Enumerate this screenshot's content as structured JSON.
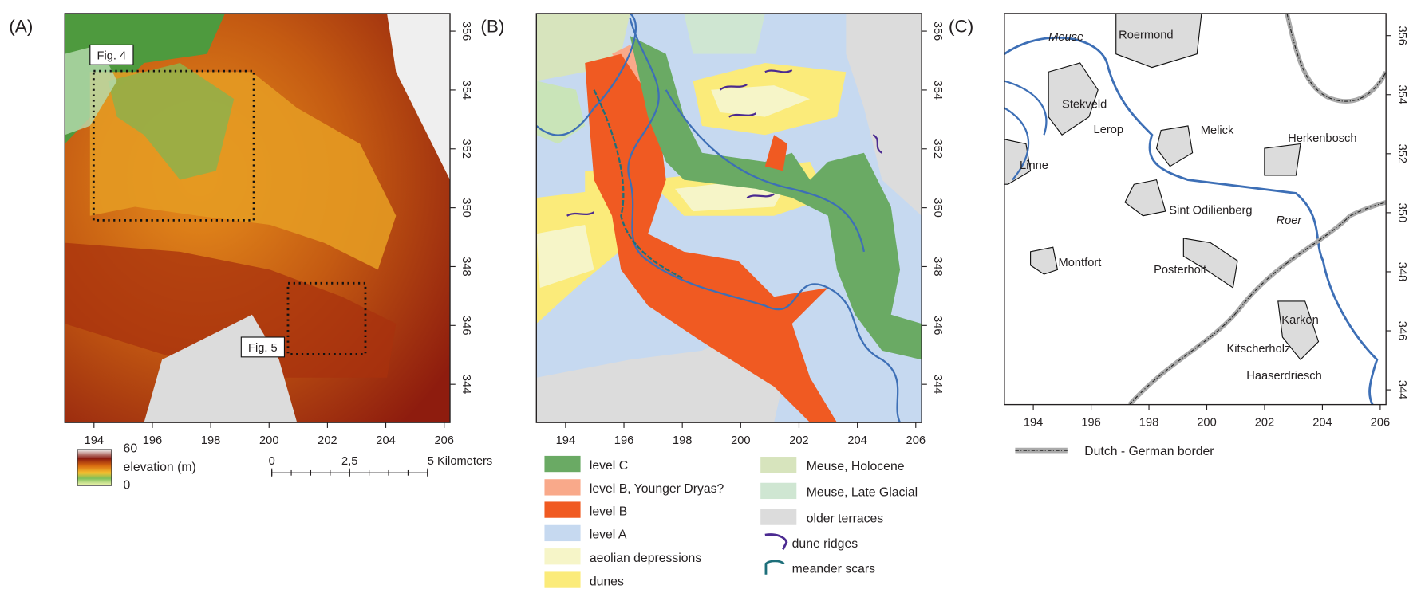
{
  "panels": [
    {
      "label": "(A)",
      "xlim": [
        193,
        206.2
      ],
      "ylim": [
        342.7,
        356.6
      ],
      "xticks": [
        194,
        196,
        198,
        200,
        202,
        204,
        206
      ],
      "yticks": [
        344,
        346,
        348,
        350,
        352,
        354,
        356
      ],
      "boxes": [
        "Fig. 4",
        "Fig. 5"
      ]
    },
    {
      "label": "(B)",
      "xlim": [
        193,
        206.2
      ],
      "ylim": [
        342.7,
        356.6
      ],
      "xticks": [
        194,
        196,
        198,
        200,
        202,
        204,
        206
      ],
      "yticks": [
        344,
        346,
        348,
        350,
        352,
        354,
        356
      ]
    },
    {
      "label": "(C)",
      "xlim": [
        193,
        206.2
      ],
      "ylim": [
        343.5,
        356.75
      ],
      "xticks": [
        194,
        196,
        198,
        200,
        202,
        204,
        206
      ],
      "yticks": [
        344,
        346,
        348,
        350,
        352,
        354,
        356
      ],
      "places": [
        "Meuse",
        "Roermond",
        "Stekveld",
        "Lerop",
        "Melick",
        "Herkenbosch",
        "Linne",
        "Sint Odilienberg",
        "Roer",
        "Montfort",
        "Posterholt",
        "Karken",
        "Kitscherholz",
        "Haaserdriesch"
      ]
    }
  ],
  "elevation_legend": {
    "max": 60,
    "label": "elevation (m)",
    "min": 0
  },
  "scale_bar": {
    "ticks": [
      0,
      {
        "value": 2.5,
        "label": "2,5"
      },
      {
        "value": 5,
        "label": "5 Kilometers"
      }
    ]
  },
  "legend_b": [
    "level C",
    "level B, Younger Dryas?",
    "level B",
    "level A",
    "aeolian depressions",
    "dunes",
    "Meuse, Holocene",
    "Meuse, Late Glacial",
    "older terraces",
    "dune ridges",
    "meander scars"
  ],
  "legend_c": "Dutch - German border"
}
